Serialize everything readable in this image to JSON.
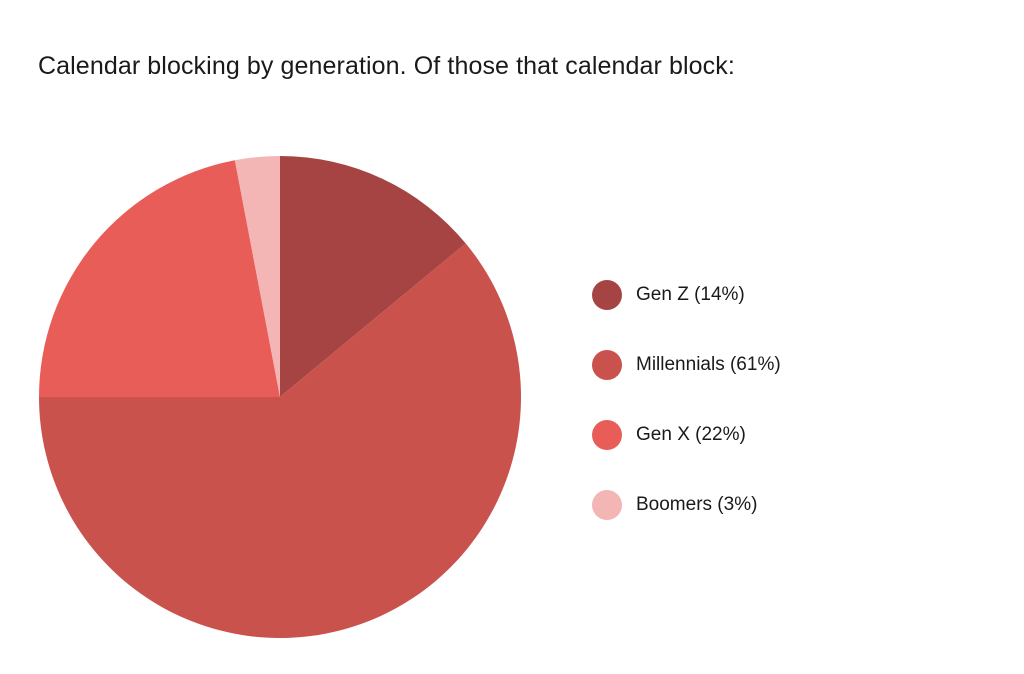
{
  "chart_data": {
    "type": "pie",
    "title": "Calendar blocking by generation. Of those that calendar block:",
    "legend_placement": "right",
    "slices": [
      {
        "label": "Gen Z (14%)",
        "value": 14,
        "color": "#a64444"
      },
      {
        "label": "Millennials (61%)",
        "value": 61,
        "color": "#c9524d"
      },
      {
        "label": "Gen X (22%)",
        "value": 22,
        "color": "#e85d57"
      },
      {
        "label": "Boomers (3%)",
        "value": 3,
        "color": "#f4b5b5"
      }
    ]
  }
}
